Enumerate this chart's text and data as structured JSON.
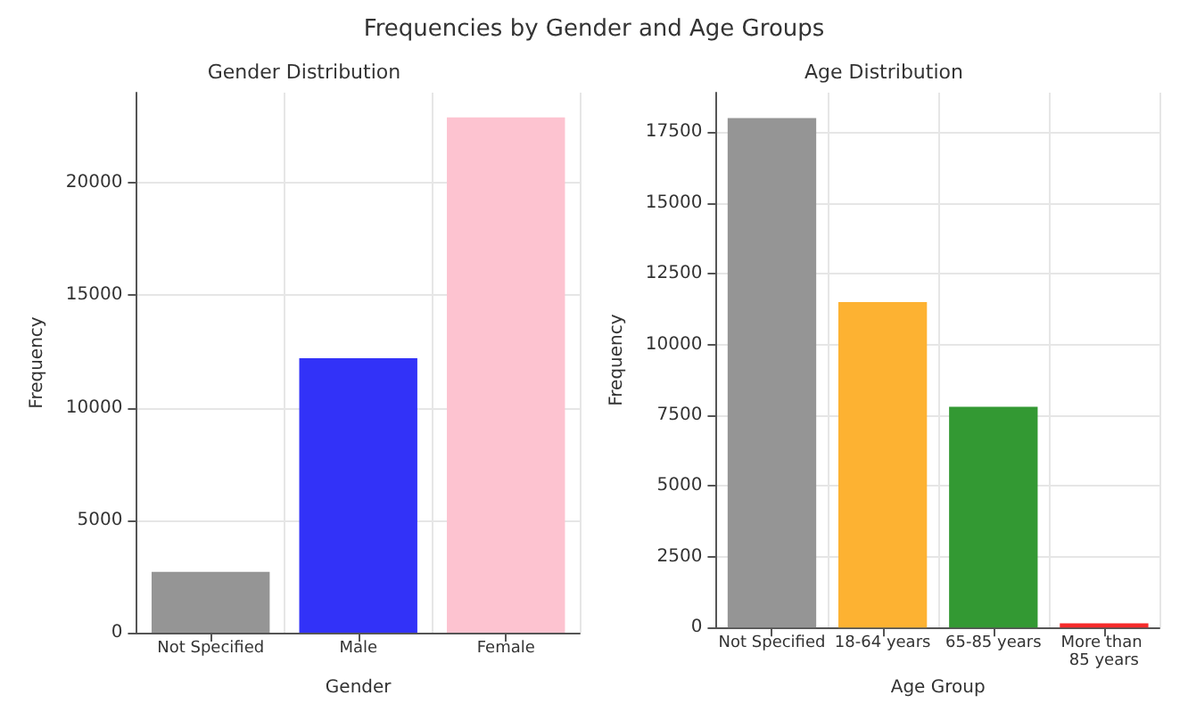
{
  "chart_data": [
    {
      "type": "bar",
      "title": "Frequencies by Gender and Age Groups",
      "subtitle": "Gender Distribution",
      "xlabel": "Gender",
      "ylabel": "Frequency",
      "categories": [
        "Not Specified",
        "Male",
        "Female"
      ],
      "colors": [
        "#959595",
        "#3232f8",
        "#fdc3d0"
      ],
      "values": [
        2700,
        12200,
        22900
      ],
      "ylim": [
        0,
        24000
      ],
      "yticks": [
        0,
        5000,
        10000,
        15000,
        20000
      ],
      "grid": true
    },
    {
      "type": "bar",
      "subtitle": "Age Distribution",
      "xlabel": "Age Group",
      "ylabel": "Frequency",
      "categories": [
        "Not Specified",
        "18-64 years",
        "65-85 years",
        "More than 85 years"
      ],
      "colors": [
        "#959595",
        "#fdb232",
        "#339933",
        "#f52b2b"
      ],
      "values": [
        18000,
        11500,
        7800,
        150
      ],
      "ylim": [
        0,
        18900
      ],
      "yticks": [
        0,
        2500,
        5000,
        7500,
        10000,
        12500,
        15000,
        17500
      ],
      "grid": true
    }
  ]
}
